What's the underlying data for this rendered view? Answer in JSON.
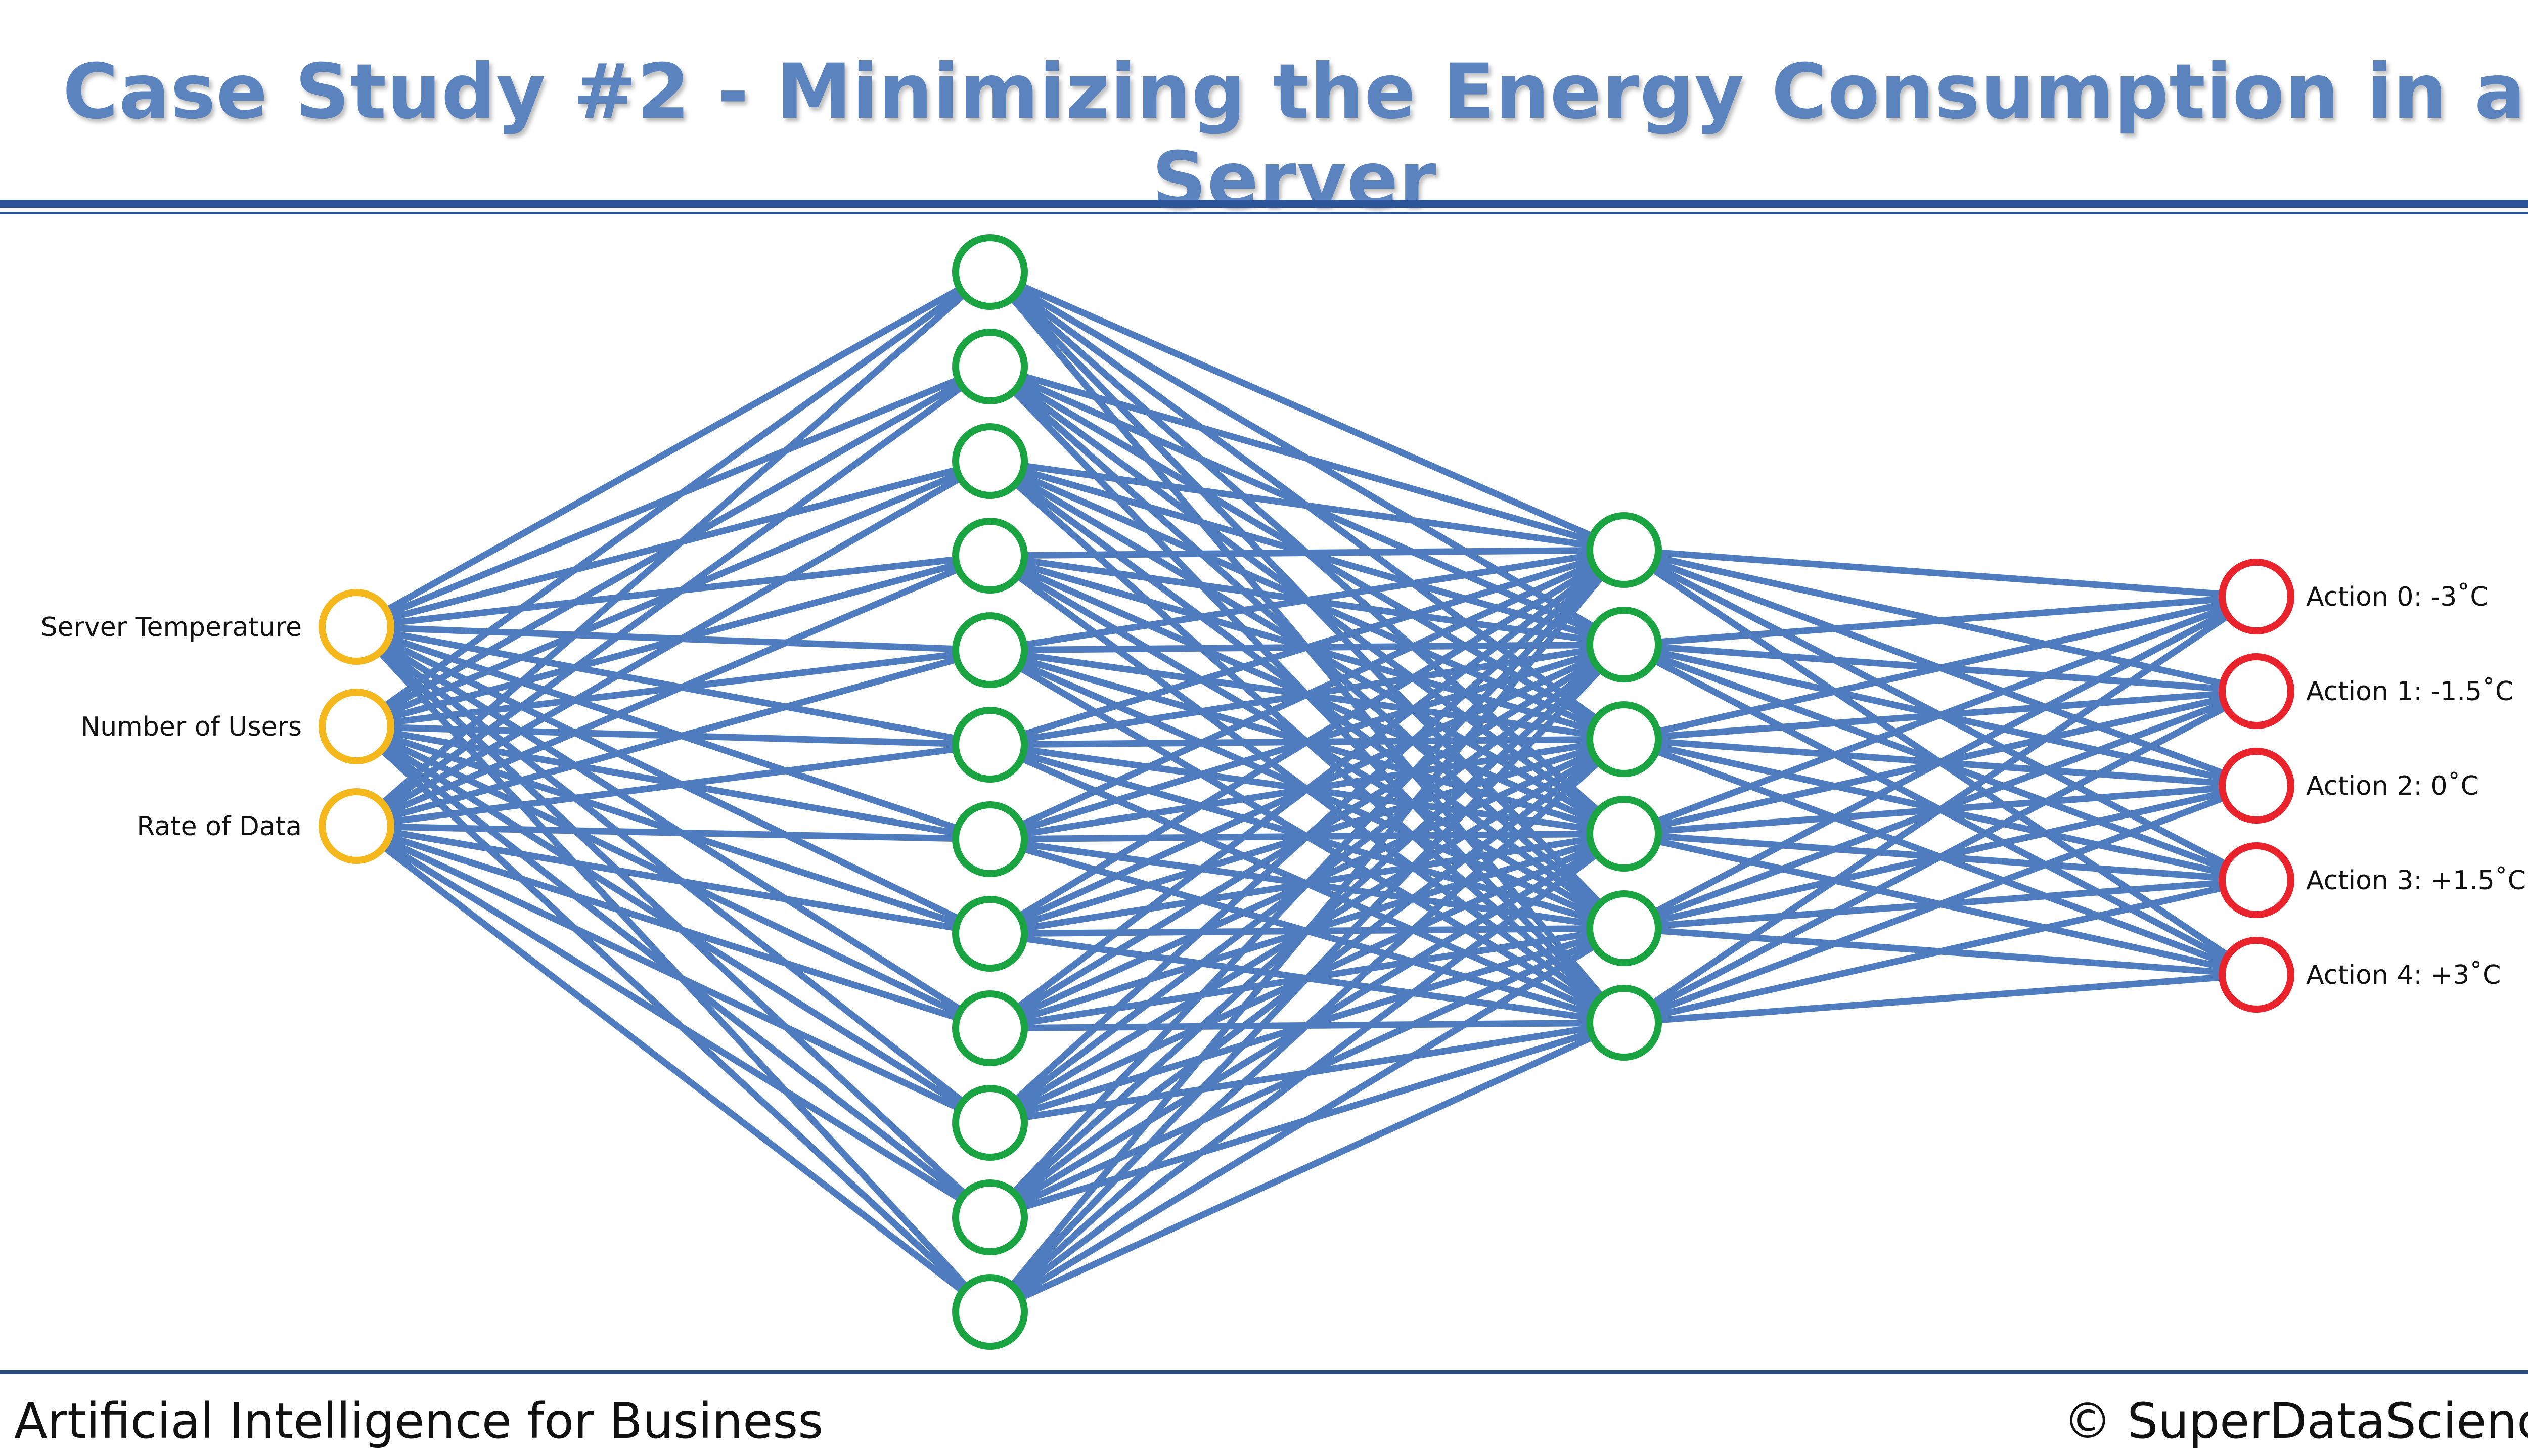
{
  "title": "Case Study #2 - Minimizing the Energy Consumption in a Server",
  "footer": {
    "left": "Artificial Intelligence for Business",
    "right": "© SuperDataScience"
  },
  "network": {
    "layers": [
      {
        "name": "input",
        "count": 3,
        "color": "#f4b81c",
        "labels": [
          "Server Temperature",
          "Number of Users",
          "Rate of Data"
        ]
      },
      {
        "name": "hidden-1",
        "count": 12,
        "color": "#1aa341",
        "labels": []
      },
      {
        "name": "hidden-2",
        "count": 6,
        "color": "#1aa341",
        "labels": []
      },
      {
        "name": "output",
        "count": 5,
        "color": "#e8232c",
        "labels": [
          "Action 0: -3˚C",
          "Action 1: -1.5˚C",
          "Action 2: 0˚C",
          "Action 3: +1.5˚C",
          "Action 4: +3˚C"
        ]
      }
    ],
    "edge_color": "#4f7cbf"
  }
}
